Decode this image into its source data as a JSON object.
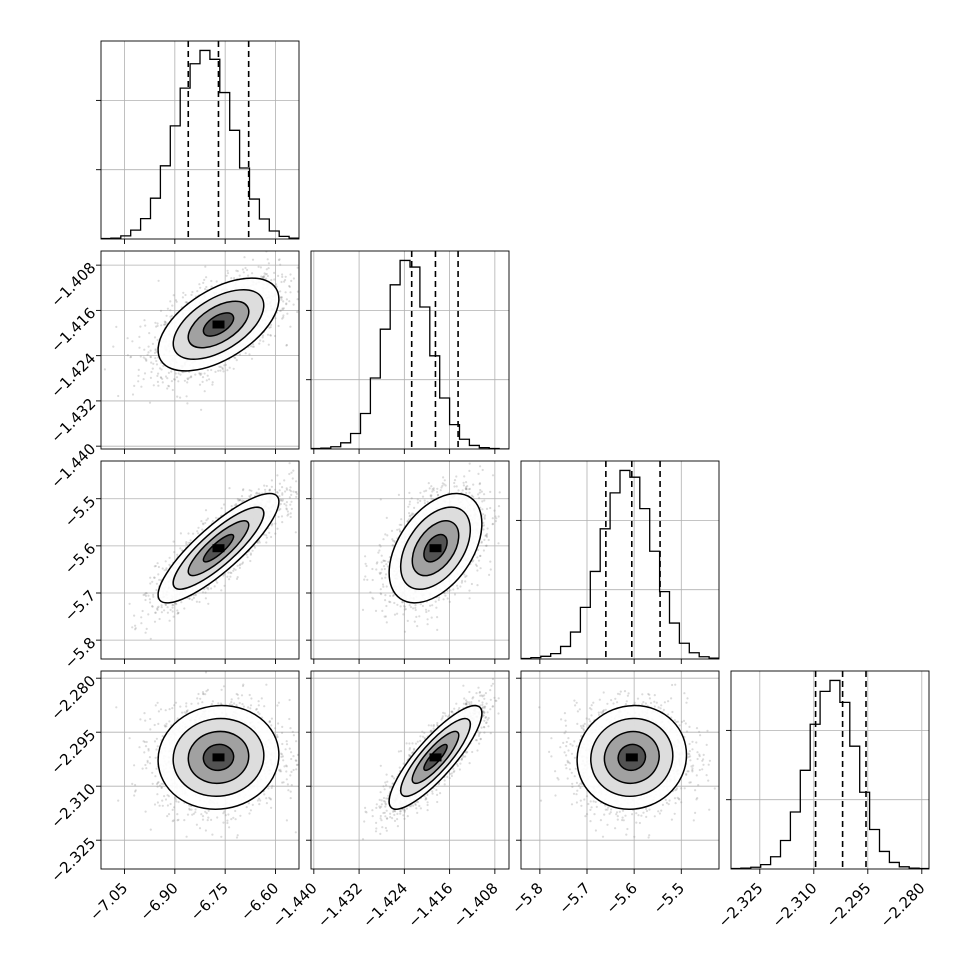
{
  "chart_data": {
    "type": "corner",
    "parameters": [
      {
        "id": "p1",
        "ticks": [
          -7.05,
          -6.9,
          -6.75,
          -6.6
        ],
        "tick_labels": [
          "−7.05",
          "−6.90",
          "−6.75",
          "−6.60"
        ],
        "range": [
          -7.12,
          -6.53
        ],
        "quantiles": [
          -6.86,
          -6.77,
          -6.68
        ],
        "median": -6.77,
        "sigma": 0.09
      },
      {
        "id": "p2",
        "ticks": [
          -1.44,
          -1.432,
          -1.424,
          -1.416,
          -1.408
        ],
        "tick_labels": [
          "−1.440",
          "−1.432",
          "−1.424",
          "−1.416",
          "−1.408"
        ],
        "range": [
          -1.4405,
          -1.4055
        ],
        "quantiles": [
          -1.4227,
          -1.4185,
          -1.4145
        ],
        "median": -1.4185,
        "sigma": 0.0041
      },
      {
        "id": "p3",
        "ticks": [
          -5.8,
          -5.7,
          -5.6,
          -5.5
        ],
        "tick_labels": [
          "−5.8",
          "−5.7",
          "−5.6",
          "−5.5"
        ],
        "range": [
          -5.84,
          -5.42
        ],
        "quantiles": [
          -5.66,
          -5.605,
          -5.545
        ],
        "median": -5.605,
        "sigma": 0.058
      },
      {
        "id": "p4",
        "ticks": [
          -2.325,
          -2.31,
          -2.295,
          -2.28
        ],
        "tick_labels": [
          "−2.325",
          "−2.310",
          "−2.295",
          "−2.280"
        ],
        "range": [
          -2.333,
          -2.278
        ],
        "quantiles": [
          -2.3095,
          -2.302,
          -2.2955
        ],
        "median": -2.302,
        "sigma": 0.0072
      }
    ],
    "correlations": [
      [
        1,
        0.55,
        0.85,
        0.05
      ],
      [
        0.55,
        1,
        0.45,
        0.85
      ],
      [
        0.85,
        0.45,
        1,
        0.05
      ],
      [
        0.05,
        0.85,
        0.05,
        1
      ]
    ],
    "histograms": [
      {
        "counts": [
          1,
          2,
          7,
          20,
          46,
          92,
          165,
          255,
          340,
          395,
          425,
          405,
          330,
          245,
          160,
          90,
          45,
          18,
          6,
          2
        ]
      },
      {
        "counts": [
          1,
          2,
          5,
          14,
          35,
          80,
          160,
          270,
          370,
          425,
          410,
          320,
          210,
          115,
          55,
          22,
          8,
          3,
          1,
          0
        ]
      },
      {
        "counts": [
          1,
          3,
          6,
          12,
          28,
          60,
          115,
          195,
          290,
          370,
          420,
          405,
          335,
          240,
          150,
          80,
          35,
          14,
          5,
          2
        ]
      },
      {
        "counts": [
          1,
          2,
          4,
          10,
          28,
          65,
          130,
          225,
          330,
          405,
          430,
          380,
          280,
          175,
          90,
          40,
          15,
          5,
          2,
          1
        ]
      }
    ],
    "contour_levels": [
      0.5,
      1.0,
      1.5,
      2.0
    ],
    "contour_note": "2D density contours at 0.5, 1.0, 1.5 and 2.0 sigma with grayscale density and scattered samples",
    "grid": true,
    "quantile_line_style": "dashed"
  }
}
